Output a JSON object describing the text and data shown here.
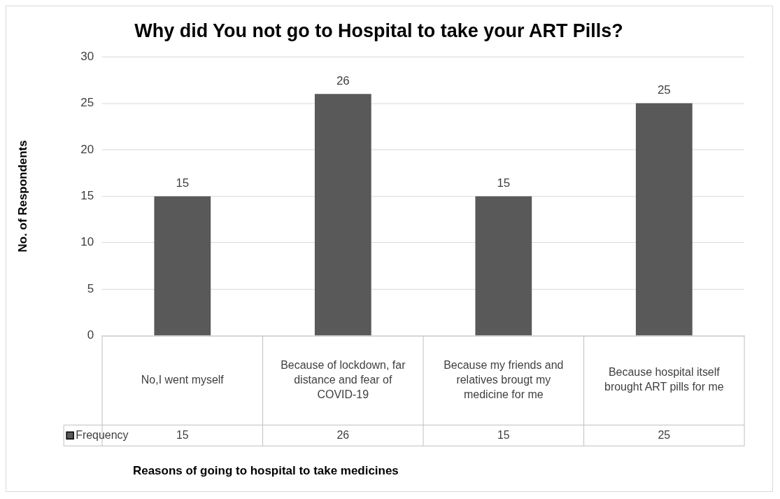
{
  "chart_data": {
    "type": "bar",
    "title": "Why did You not go to Hospital to take your ART Pills?",
    "annotations": [
      "Reasons of going to hospital to take medicines"
    ],
    "ylabel": "No. of Respondents",
    "categories": [
      "No,I went myself",
      "Because of lockdown, far distance and fear of COVID-19",
      "Because my friends and relatives brougt my medicine for me",
      "Because hospital itself brought ART pills for me"
    ],
    "series": [
      {
        "name": "Frequency",
        "color": "#595959",
        "values": [
          15,
          26,
          15,
          25
        ],
        "value_labels": [
          "15",
          "26",
          "15",
          "25"
        ]
      }
    ],
    "ylim": [
      0,
      30
    ],
    "yticks": [
      0,
      5,
      10,
      15,
      20,
      25,
      30
    ],
    "grid": "y",
    "legend": "bottom"
  }
}
